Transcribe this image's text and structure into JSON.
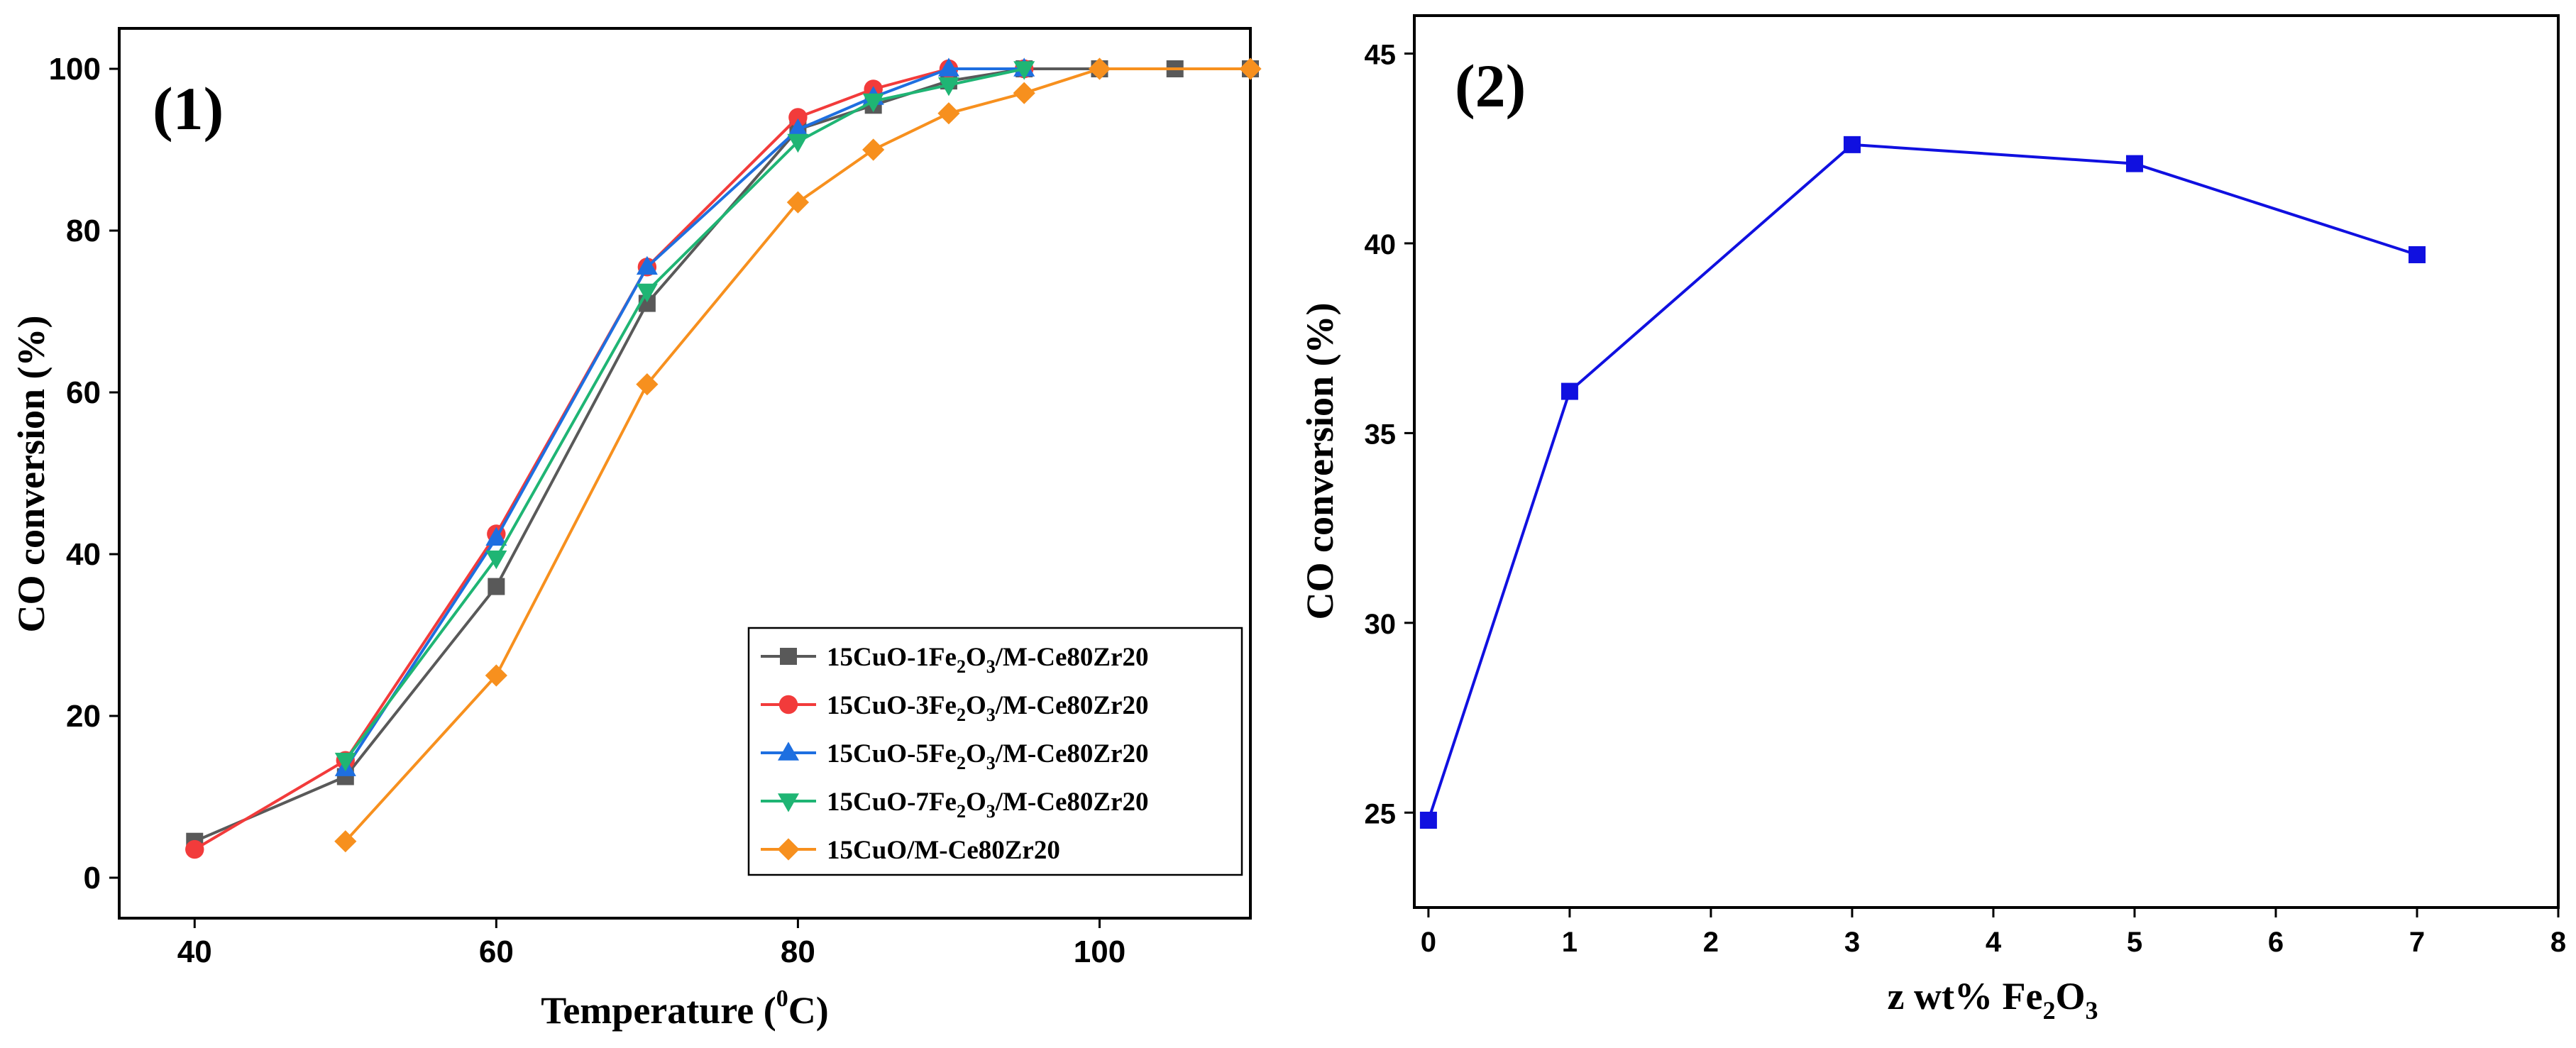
{
  "chart_data": [
    {
      "type": "line",
      "panel_label": "(1)",
      "xlabel": "Temperature (",
      "xlabel_sup": "0",
      "xlabel_suffix": "C)",
      "ylabel": "CO conversion (%)",
      "xlim": [
        35,
        110
      ],
      "ylim": [
        -5,
        105
      ],
      "xticks": [
        40,
        60,
        80,
        100
      ],
      "yticks": [
        0,
        20,
        40,
        60,
        80,
        100
      ],
      "legend_position": "lower-right",
      "series": [
        {
          "name": "15CuO-1Fe2O3/M-Ce80Zr20",
          "name_parts": [
            "15CuO-1Fe",
            "2",
            "O",
            "3",
            "/M-Ce80Zr20"
          ],
          "color": "#595959",
          "marker": "square",
          "x": [
            40,
            50,
            60,
            70,
            80,
            85,
            90,
            95,
            100,
            105,
            110
          ],
          "y": [
            4.5,
            12.5,
            36,
            71,
            92.5,
            95.5,
            98.5,
            100,
            100,
            100,
            100
          ]
        },
        {
          "name": "15CuO-3Fe2O3/M-Ce80Zr20",
          "name_parts": [
            "15CuO-3Fe",
            "2",
            "O",
            "3",
            "/M-Ce80Zr20"
          ],
          "color": "#f23b3b",
          "marker": "circle",
          "x": [
            40,
            50,
            60,
            70,
            80,
            85,
            90,
            95
          ],
          "y": [
            3.5,
            14.5,
            42.5,
            75.5,
            94,
            97.5,
            100,
            100
          ]
        },
        {
          "name": "15CuO-5Fe2O3/M-Ce80Zr20",
          "name_parts": [
            "15CuO-5Fe",
            "2",
            "O",
            "3",
            "/M-Ce80Zr20"
          ],
          "color": "#1e6fe0",
          "marker": "triangle-up",
          "x": [
            50,
            60,
            70,
            80,
            85,
            90,
            95
          ],
          "y": [
            13.5,
            42,
            75.5,
            92.5,
            96.5,
            100,
            100
          ]
        },
        {
          "name": "15CuO-7Fe2O3/M-Ce80Zr20",
          "name_parts": [
            "15CuO-7Fe",
            "2",
            "O",
            "3",
            "/M-Ce80Zr20"
          ],
          "color": "#1fb574",
          "marker": "triangle-down",
          "x": [
            50,
            60,
            70,
            80,
            85,
            90,
            95
          ],
          "y": [
            14.5,
            39.5,
            72.5,
            91,
            96,
            98,
            100
          ]
        },
        {
          "name": "15CuO/M-Ce80Zr20",
          "name_parts": [
            "15CuO/M-Ce80Zr20"
          ],
          "color": "#f7901e",
          "marker": "diamond",
          "x": [
            50,
            60,
            70,
            80,
            85,
            90,
            95,
            100,
            110
          ],
          "y": [
            4.5,
            25,
            61,
            83.5,
            90,
            94.5,
            97,
            100,
            100
          ]
        }
      ]
    },
    {
      "type": "line",
      "panel_label": "(2)",
      "xlabel": "z wt% Fe",
      "xlabel_sub1": "2",
      "xlabel_mid": "O",
      "xlabel_sub2": "3",
      "ylabel": "CO conversion (%)",
      "xlim": [
        -0.1,
        8
      ],
      "ylim": [
        22.5,
        46
      ],
      "xticks": [
        0,
        1,
        2,
        3,
        4,
        5,
        6,
        7,
        8
      ],
      "yticks": [
        25,
        30,
        35,
        40,
        45
      ],
      "series": [
        {
          "name": "CO conversion",
          "color": "#1010e0",
          "marker": "square",
          "x": [
            0,
            1,
            3,
            5,
            7
          ],
          "y": [
            24.8,
            36.1,
            42.6,
            42.1,
            39.7
          ]
        }
      ]
    }
  ]
}
